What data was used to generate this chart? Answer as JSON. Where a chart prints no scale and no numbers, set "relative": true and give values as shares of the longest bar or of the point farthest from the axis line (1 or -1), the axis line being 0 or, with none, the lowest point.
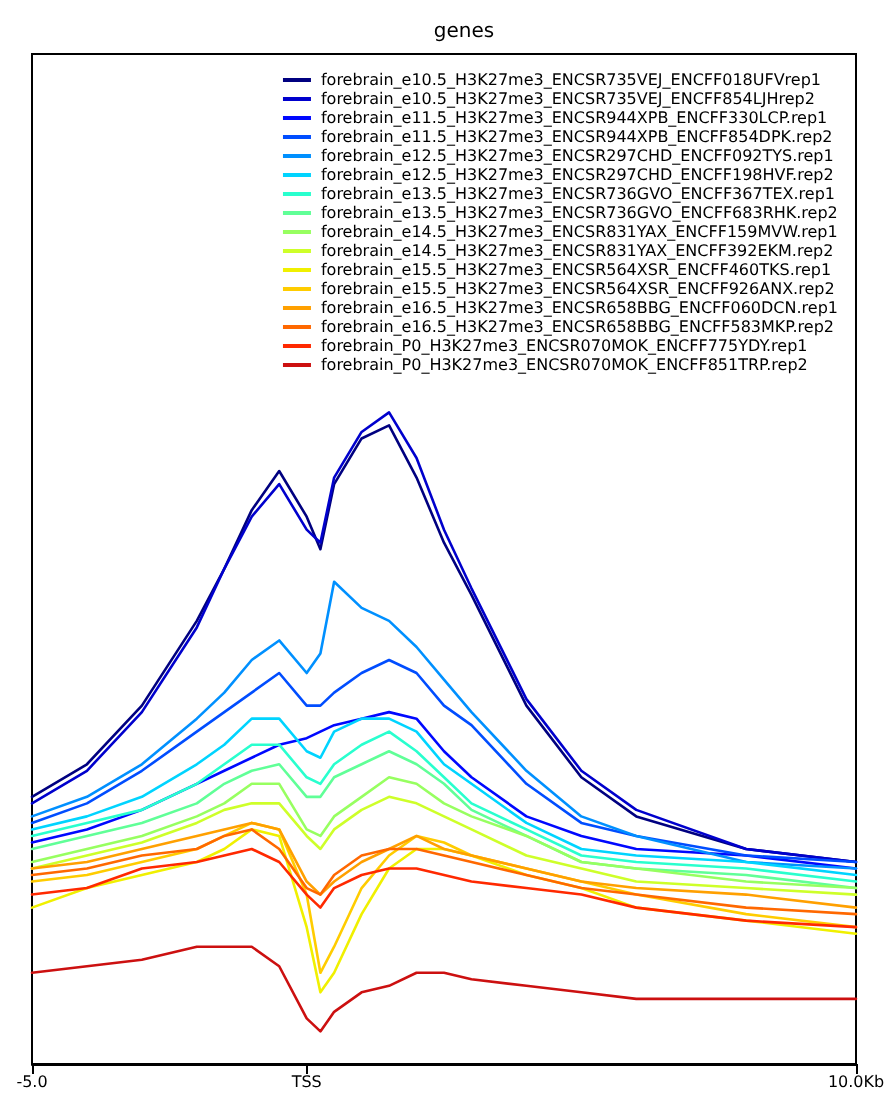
{
  "chart_data": {
    "type": "line",
    "title": "genes",
    "relative": true,
    "legend": "top right",
    "grid": false,
    "marker": "none",
    "line_style": "solid",
    "x": [
      -5,
      -4,
      -3,
      -2,
      -1.5,
      -1,
      -0.5,
      0,
      0.25,
      0.5,
      1,
      1.5,
      2,
      2.5,
      3,
      4,
      5,
      6,
      8,
      10
    ],
    "xlim": [
      -5,
      10
    ],
    "xticks": [
      {
        "value": -5,
        "label": "-5.0"
      },
      {
        "value": 0,
        "label": "TSS"
      },
      {
        "value": 10,
        "label": "10.0Kb"
      }
    ],
    "series": [
      {
        "name": "forebrain_e10.5_H3K27me3_ENCSR735VEJ_ENCFF018UFVrep1",
        "color": "#000080",
        "values": [
          0.41,
          0.46,
          0.55,
          0.68,
          0.76,
          0.85,
          0.91,
          0.84,
          0.79,
          0.89,
          0.96,
          0.98,
          0.9,
          0.8,
          0.72,
          0.55,
          0.44,
          0.38,
          0.33,
          0.31
        ]
      },
      {
        "name": "forebrain_e10.5_H3K27me3_ENCSR735VEJ_ENCFF854LJHrep2",
        "color": "#0000cd",
        "values": [
          0.4,
          0.45,
          0.54,
          0.67,
          0.76,
          0.84,
          0.89,
          0.82,
          0.8,
          0.9,
          0.97,
          1.0,
          0.93,
          0.82,
          0.73,
          0.56,
          0.45,
          0.39,
          0.33,
          0.31
        ]
      },
      {
        "name": "forebrain_e11.5_H3K27me3_ENCSR944XPB_ENCFF330LCP.rep1",
        "color": "#0008ff",
        "values": [
          0.34,
          0.36,
          0.39,
          0.43,
          0.45,
          0.47,
          0.49,
          0.5,
          0.51,
          0.52,
          0.53,
          0.54,
          0.53,
          0.48,
          0.44,
          0.38,
          0.35,
          0.33,
          0.32,
          0.3
        ]
      },
      {
        "name": "forebrain_e11.5_H3K27me3_ENCSR944XPB_ENCFF854DPK.rep2",
        "color": "#004dff",
        "values": [
          0.37,
          0.4,
          0.45,
          0.51,
          0.54,
          0.57,
          0.6,
          0.55,
          0.55,
          0.57,
          0.6,
          0.62,
          0.6,
          0.55,
          0.52,
          0.43,
          0.37,
          0.35,
          0.32,
          0.31
        ]
      },
      {
        "name": "forebrain_e12.5_H3K27me3_ENCSR297CHD_ENCFF092TYS.rep1",
        "color": "#0090ff",
        "values": [
          0.38,
          0.41,
          0.46,
          0.53,
          0.57,
          0.62,
          0.65,
          0.6,
          0.63,
          0.74,
          0.7,
          0.68,
          0.64,
          0.59,
          0.54,
          0.45,
          0.38,
          0.35,
          0.31,
          0.3
        ]
      },
      {
        "name": "forebrain_e12.5_H3K27me3_ENCSR297CHD_ENCFF198HVF.rep2",
        "color": "#00d4ff",
        "values": [
          0.36,
          0.38,
          0.41,
          0.46,
          0.49,
          0.53,
          0.53,
          0.48,
          0.47,
          0.51,
          0.53,
          0.53,
          0.51,
          0.46,
          0.43,
          0.37,
          0.33,
          0.32,
          0.31,
          0.29
        ]
      },
      {
        "name": "forebrain_e13.5_H3K27me3_ENCSR736GVO_ENCFF367TEX.rep1",
        "color": "#29ffce",
        "values": [
          0.35,
          0.37,
          0.39,
          0.43,
          0.46,
          0.49,
          0.49,
          0.44,
          0.43,
          0.46,
          0.49,
          0.51,
          0.48,
          0.44,
          0.4,
          0.36,
          0.32,
          0.31,
          0.3,
          0.28
        ]
      },
      {
        "name": "forebrain_e13.5_H3K27me3_ENCSR736GVO_ENCFF683RHK.rep2",
        "color": "#60ff97",
        "values": [
          0.33,
          0.35,
          0.37,
          0.4,
          0.43,
          0.45,
          0.46,
          0.41,
          0.41,
          0.44,
          0.46,
          0.48,
          0.46,
          0.43,
          0.39,
          0.35,
          0.31,
          0.3,
          0.29,
          0.27
        ]
      },
      {
        "name": "forebrain_e14.5_H3K27me3_ENCSR831YAX_ENCFF159MVW.rep1",
        "color": "#97ff60",
        "values": [
          0.31,
          0.33,
          0.35,
          0.38,
          0.4,
          0.43,
          0.43,
          0.36,
          0.35,
          0.38,
          0.41,
          0.44,
          0.43,
          0.4,
          0.38,
          0.35,
          0.31,
          0.3,
          0.28,
          0.27
        ]
      },
      {
        "name": "forebrain_e14.5_H3K27me3_ENCSR831YAX_ENCFF392EKM.rep2",
        "color": "#ceff29",
        "values": [
          0.3,
          0.32,
          0.34,
          0.37,
          0.39,
          0.4,
          0.4,
          0.35,
          0.33,
          0.36,
          0.39,
          0.41,
          0.4,
          0.38,
          0.36,
          0.32,
          0.3,
          0.28,
          0.27,
          0.26
        ]
      },
      {
        "name": "forebrain_e15.5_H3K27me3_ENCSR564XSR_ENCFF460TKS.rep1",
        "color": "#f0f000",
        "values": [
          0.24,
          0.27,
          0.29,
          0.31,
          0.33,
          0.36,
          0.35,
          0.21,
          0.11,
          0.14,
          0.23,
          0.3,
          0.33,
          0.33,
          0.32,
          0.29,
          0.27,
          0.24,
          0.22,
          0.2
        ]
      },
      {
        "name": "forebrain_e15.5_H3K27me3_ENCSR564XSR_ENCFF926ANX.rep2",
        "color": "#ffcc00",
        "values": [
          0.28,
          0.29,
          0.31,
          0.33,
          0.35,
          0.37,
          0.36,
          0.26,
          0.14,
          0.18,
          0.27,
          0.32,
          0.35,
          0.34,
          0.32,
          0.3,
          0.28,
          0.26,
          0.23,
          0.21
        ]
      },
      {
        "name": "forebrain_e16.5_H3K27me3_ENCSR658BBG_ENCFF060DCN.rep1",
        "color": "#ffa000",
        "values": [
          0.3,
          0.31,
          0.33,
          0.35,
          0.36,
          0.37,
          0.36,
          0.28,
          0.26,
          0.28,
          0.31,
          0.33,
          0.35,
          0.33,
          0.32,
          0.3,
          0.28,
          0.27,
          0.26,
          0.24
        ]
      },
      {
        "name": "forebrain_e16.5_H3K27me3_ENCSR658BBG_ENCFF583MKP.rep2",
        "color": "#ff6800",
        "values": [
          0.29,
          0.3,
          0.32,
          0.33,
          0.35,
          0.36,
          0.33,
          0.27,
          0.26,
          0.29,
          0.32,
          0.33,
          0.33,
          0.32,
          0.31,
          0.29,
          0.27,
          0.26,
          0.24,
          0.23
        ]
      },
      {
        "name": "forebrain_P0_H3K27me3_ENCSR070MOK_ENCFF775YDY.rep1",
        "color": "#ff2900",
        "values": [
          0.26,
          0.27,
          0.3,
          0.31,
          0.32,
          0.33,
          0.31,
          0.26,
          0.24,
          0.27,
          0.29,
          0.3,
          0.3,
          0.29,
          0.28,
          0.27,
          0.26,
          0.24,
          0.22,
          0.21
        ]
      },
      {
        "name": "forebrain_P0_H3K27me3_ENCSR070MOK_ENCFF851TRP.rep2",
        "color": "#cc1010",
        "values": [
          0.14,
          0.15,
          0.16,
          0.18,
          0.18,
          0.18,
          0.15,
          0.07,
          0.05,
          0.08,
          0.11,
          0.12,
          0.14,
          0.14,
          0.13,
          0.12,
          0.11,
          0.1,
          0.1,
          0.1
        ]
      }
    ]
  }
}
